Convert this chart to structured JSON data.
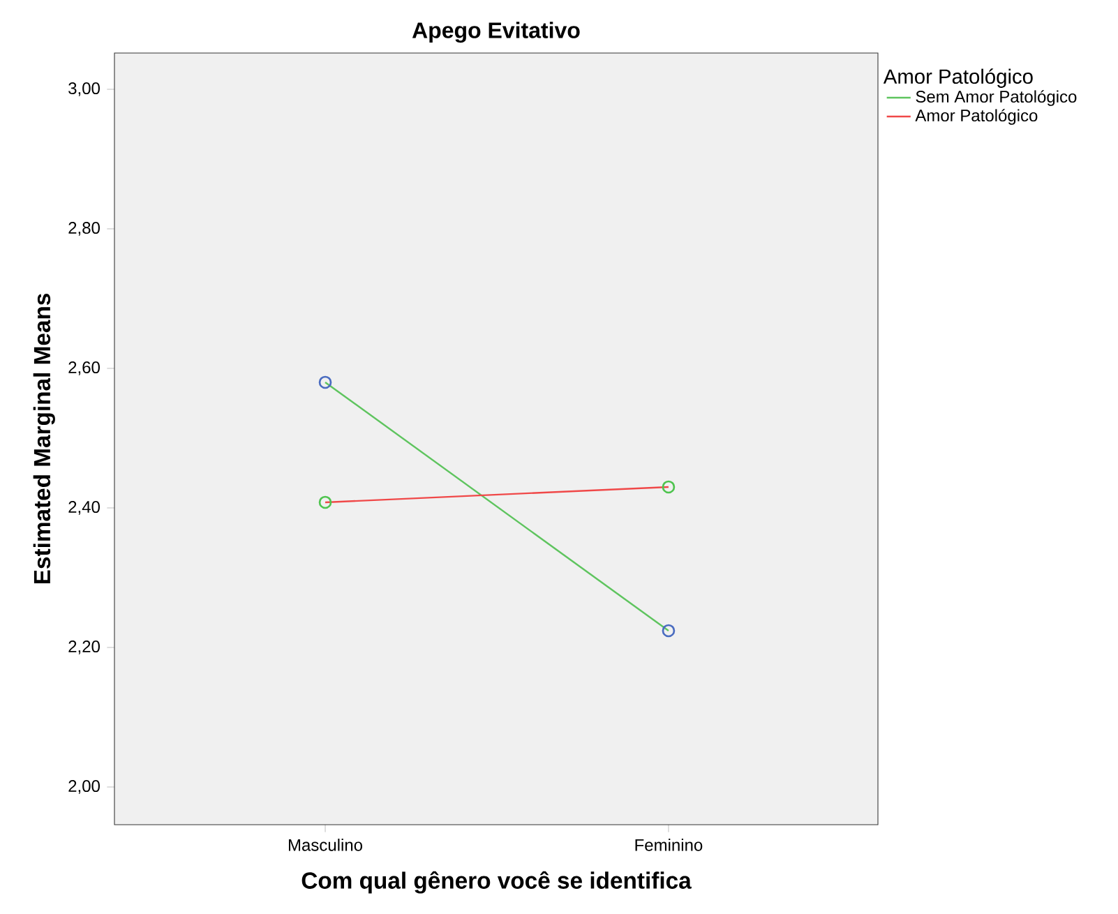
{
  "chart_data": {
    "type": "line",
    "title": "Apego Evitativo",
    "xlabel": "Com qual gênero você se identifica",
    "ylabel": "Estimated Marginal Means",
    "legend_title": "Amor Patológico",
    "categories": [
      "Masculino",
      "Feminino"
    ],
    "series": [
      {
        "name": "Sem Amor Patológico",
        "color": "#5ec45e",
        "colors": [
          "#4a6cc0",
          "#4a6cc0"
        ],
        "values": [
          2.58,
          2.224
        ]
      },
      {
        "name": "Amor Patológico",
        "color": "#f04848",
        "colors": [
          "#4fc44f",
          "#4fc44f"
        ],
        "values": [
          2.408,
          2.43
        ]
      }
    ],
    "ylim": [
      1.946,
      3.052
    ],
    "yticks": [
      {
        "value": 2.0,
        "label": "2,00"
      },
      {
        "value": 2.2,
        "label": "2,20"
      },
      {
        "value": 2.4,
        "label": "2,40"
      },
      {
        "value": 2.6,
        "label": "2,60"
      },
      {
        "value": 2.8,
        "label": "2,80"
      },
      {
        "value": 3.0,
        "label": "3,00"
      }
    ],
    "marker": "circle",
    "line_style": "solid",
    "legend": "top right",
    "grid": false
  }
}
